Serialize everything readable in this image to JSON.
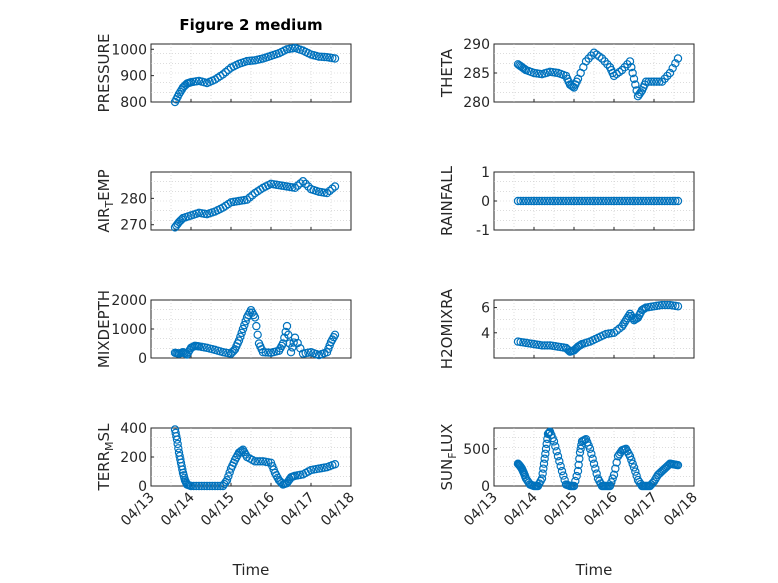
{
  "title": "Figure 2 medium",
  "xlabel": "Time",
  "xticks": [
    "04/13",
    "04/14",
    "04/15",
    "04/16",
    "04/17",
    "04/18"
  ],
  "marker_color": "#0072BD",
  "chart_data": [
    {
      "type": "scatter",
      "ylabel": "PRESSURE",
      "ylabel_parts": [
        "PRESSURE"
      ],
      "ylim": [
        800,
        1020
      ],
      "yticks": [
        800,
        900,
        1000
      ],
      "xlim": [
        0,
        5
      ],
      "x": [
        0.6,
        0.7,
        0.8,
        0.9,
        1.0,
        1.2,
        1.4,
        1.6,
        1.8,
        2.0,
        2.2,
        2.4,
        2.6,
        2.8,
        3.0,
        3.2,
        3.4,
        3.6,
        3.8,
        4.0,
        4.2,
        4.4,
        4.6
      ],
      "y": [
        800,
        830,
        855,
        870,
        875,
        880,
        872,
        885,
        905,
        930,
        945,
        955,
        958,
        965,
        975,
        985,
        1000,
        1005,
        995,
        980,
        972,
        970,
        965
      ]
    },
    {
      "type": "scatter",
      "ylabel": "THETA",
      "ylabel_parts": [
        "THETA"
      ],
      "ylim": [
        280,
        290
      ],
      "yticks": [
        280,
        285,
        290
      ],
      "xlim": [
        0,
        5
      ],
      "x": [
        0.6,
        0.7,
        0.8,
        1.0,
        1.2,
        1.4,
        1.6,
        1.8,
        1.9,
        2.0,
        2.1,
        2.3,
        2.5,
        2.7,
        2.9,
        3.0,
        3.2,
        3.4,
        3.5,
        3.6,
        3.7,
        3.8,
        4.0,
        4.2,
        4.4,
        4.6
      ],
      "y": [
        286.5,
        286,
        285.5,
        285,
        284.8,
        285.2,
        285,
        284.5,
        283,
        282.5,
        284,
        287,
        288.5,
        287.5,
        286,
        284.5,
        285.5,
        287,
        284,
        281,
        282,
        283.5,
        283.5,
        283.5,
        285,
        287.5
      ]
    },
    {
      "type": "scatter",
      "ylabel": "AIR_TEMP",
      "ylabel_parts": [
        "AIR",
        "T",
        "EMP"
      ],
      "ylim": [
        268,
        290
      ],
      "yticks": [
        270,
        280
      ],
      "xlim": [
        0,
        5
      ],
      "x": [
        0.6,
        0.7,
        0.8,
        1.0,
        1.2,
        1.4,
        1.6,
        1.8,
        2.0,
        2.2,
        2.4,
        2.6,
        2.8,
        3.0,
        3.2,
        3.4,
        3.6,
        3.8,
        4.0,
        4.2,
        4.4,
        4.6
      ],
      "y": [
        269,
        271,
        272.5,
        273.5,
        274.5,
        274,
        275,
        276.5,
        278.5,
        279,
        279.5,
        282,
        284,
        285.5,
        285,
        284.5,
        284,
        286.5,
        283.5,
        282.5,
        282,
        284.5
      ]
    },
    {
      "type": "scatter",
      "ylabel": "RAINFALL",
      "ylabel_parts": [
        "RAINFALL"
      ],
      "ylim": [
        -1,
        1
      ],
      "yticks": [
        -1,
        0,
        1
      ],
      "xlim": [
        0,
        5
      ],
      "x": [
        0.6,
        0.8,
        1.0,
        1.2,
        1.4,
        1.6,
        1.8,
        2.0,
        2.2,
        2.4,
        2.6,
        2.8,
        3.0,
        3.2,
        3.4,
        3.6,
        3.8,
        4.0,
        4.2,
        4.4,
        4.6
      ],
      "y": [
        0,
        0,
        0,
        0,
        0,
        0,
        0,
        0,
        0,
        0,
        0,
        0,
        0,
        0,
        0,
        0,
        0,
        0,
        0,
        0,
        0
      ]
    },
    {
      "type": "scatter",
      "ylabel": "MIXDEPTH",
      "ylabel_parts": [
        "MIXDEPTH"
      ],
      "ylim": [
        0,
        2000
      ],
      "yticks": [
        0,
        1000,
        2000
      ],
      "xlim": [
        0,
        5
      ],
      "x": [
        0.6,
        0.7,
        0.8,
        0.9,
        1.0,
        1.1,
        1.2,
        1.4,
        1.6,
        1.8,
        2.0,
        2.1,
        2.2,
        2.3,
        2.4,
        2.5,
        2.6,
        2.7,
        2.8,
        3.0,
        3.2,
        3.3,
        3.4,
        3.5,
        3.6,
        3.8,
        4.0,
        4.2,
        4.4,
        4.5,
        4.6
      ],
      "y": [
        180,
        150,
        200,
        120,
        350,
        420,
        400,
        350,
        280,
        200,
        150,
        300,
        600,
        1000,
        1400,
        1650,
        1400,
        500,
        200,
        180,
        250,
        500,
        1100,
        200,
        700,
        150,
        200,
        100,
        200,
        550,
        800
      ]
    },
    {
      "type": "scatter",
      "ylabel": "H2OMIXRA",
      "ylabel_parts": [
        "H2OMIXRA"
      ],
      "ylim": [
        2,
        6.6
      ],
      "yticks": [
        4,
        6
      ],
      "xlim": [
        0,
        5
      ],
      "x": [
        0.6,
        0.8,
        1.0,
        1.2,
        1.4,
        1.6,
        1.8,
        1.9,
        2.0,
        2.1,
        2.2,
        2.4,
        2.6,
        2.8,
        3.0,
        3.2,
        3.3,
        3.4,
        3.5,
        3.6,
        3.7,
        3.8,
        4.0,
        4.2,
        4.4,
        4.6
      ],
      "y": [
        3.3,
        3.2,
        3.1,
        3.0,
        3.0,
        2.9,
        2.8,
        2.5,
        2.6,
        2.9,
        3.1,
        3.3,
        3.6,
        3.9,
        4.0,
        4.5,
        5.0,
        5.5,
        5.0,
        5.2,
        5.8,
        6.0,
        6.1,
        6.2,
        6.2,
        6.1
      ]
    },
    {
      "type": "scatter",
      "ylabel": "TERR_MSL",
      "ylabel_parts": [
        "TERR",
        "M",
        "SL"
      ],
      "ylim": [
        0,
        400
      ],
      "yticks": [
        0,
        200,
        400
      ],
      "xlim": [
        0,
        5
      ],
      "x": [
        0.6,
        0.65,
        0.7,
        0.75,
        0.8,
        0.85,
        0.9,
        1.0,
        1.2,
        1.4,
        1.6,
        1.8,
        1.9,
        2.0,
        2.1,
        2.2,
        2.3,
        2.4,
        2.6,
        2.8,
        3.0,
        3.1,
        3.2,
        3.3,
        3.4,
        3.5,
        3.6,
        3.8,
        4.0,
        4.2,
        4.4,
        4.6
      ],
      "y": [
        390,
        320,
        230,
        160,
        90,
        40,
        10,
        0,
        0,
        0,
        0,
        0,
        40,
        120,
        180,
        230,
        250,
        200,
        170,
        170,
        160,
        90,
        40,
        10,
        20,
        60,
        70,
        80,
        110,
        120,
        130,
        150
      ]
    },
    {
      "type": "scatter",
      "ylabel": "SUN_FLUX",
      "ylabel_parts": [
        "SUN",
        "F",
        "LUX"
      ],
      "ylim": [
        0,
        780
      ],
      "yticks": [
        0,
        500
      ],
      "xlim": [
        0,
        5
      ],
      "x": [
        0.6,
        0.65,
        0.7,
        0.75,
        0.8,
        0.9,
        1.0,
        1.1,
        1.2,
        1.25,
        1.3,
        1.35,
        1.4,
        1.5,
        1.6,
        1.7,
        1.8,
        1.9,
        2.0,
        2.1,
        2.15,
        2.2,
        2.3,
        2.4,
        2.5,
        2.6,
        2.7,
        2.8,
        2.9,
        3.0,
        3.1,
        3.2,
        3.3,
        3.4,
        3.5,
        3.6,
        3.7,
        3.8,
        3.9,
        4.0,
        4.1,
        4.2,
        4.3,
        4.4,
        4.5,
        4.6
      ],
      "y": [
        300,
        270,
        230,
        170,
        100,
        20,
        0,
        0,
        100,
        300,
        500,
        700,
        730,
        600,
        400,
        200,
        20,
        0,
        0,
        200,
        450,
        600,
        630,
        500,
        300,
        100,
        0,
        0,
        0,
        150,
        400,
        480,
        500,
        400,
        250,
        80,
        0,
        0,
        0,
        60,
        150,
        200,
        250,
        300,
        290,
        280
      ]
    }
  ]
}
